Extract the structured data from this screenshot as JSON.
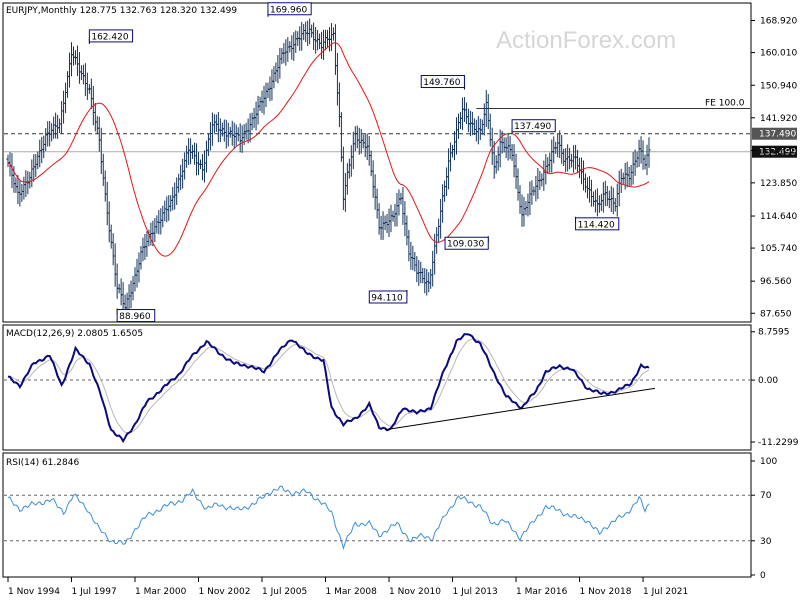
{
  "header": {
    "symbol_line": "EURJPY,Monthly  128.775 132.763 128.320 132.499",
    "watermark": "ActionForex.com"
  },
  "chart_data": [
    {
      "type": "ohlc",
      "panel": "price",
      "title": "EURJPY,Monthly",
      "ohlc_last": {
        "open": 128.775,
        "high": 132.763,
        "low": 128.32,
        "close": 132.499
      },
      "ylim": [
        85.5,
        173.5
      ],
      "y_ticks": [
        "168.920",
        "160.010",
        "150.940",
        "141.920",
        "132.830",
        "123.850",
        "114.640",
        "105.740",
        "96.560",
        "87.650"
      ],
      "ma_label": "",
      "levels": [
        {
          "value": 137.49,
          "style": "dashed",
          "label": "137.490"
        },
        {
          "value": 132.499,
          "style": "solid-gray",
          "label": "132.499"
        },
        {
          "value": 144.5,
          "style": "solid",
          "label": "FE 100.0",
          "x_start": "2014-07"
        }
      ],
      "annotations": [
        {
          "label": "162.420",
          "x": "1998-04",
          "y": 162.42
        },
        {
          "label": "169.960",
          "x": "2005-10",
          "y": 169.96
        },
        {
          "label": "88.960",
          "x": "1999-06",
          "y": 88.96
        },
        {
          "label": "94.110",
          "x": "2011-08",
          "y": 94.11
        },
        {
          "label": "149.760",
          "x": "2014-01",
          "y": 149.76
        },
        {
          "label": "137.490",
          "x": "2016-01",
          "y": 137.49
        },
        {
          "label": "109.030",
          "x": "2015-01",
          "y": 109.03
        },
        {
          "label": "114.420",
          "x": "2018-09",
          "y": 114.42
        }
      ],
      "close_anchors": [
        [
          "1994-11",
          129.0
        ],
        [
          "1995-04",
          121.0
        ],
        [
          "1995-10",
          125.0
        ],
        [
          "1996-06",
          137.0
        ],
        [
          "1997-01",
          140.0
        ],
        [
          "1997-07",
          160.0
        ],
        [
          "1997-11",
          155.0
        ],
        [
          "1998-04",
          150.0
        ],
        [
          "1998-09",
          135.0
        ],
        [
          "1998-12",
          120.0
        ],
        [
          "1999-06",
          95.0
        ],
        [
          "1999-10",
          89.0
        ],
        [
          "2000-03",
          98.0
        ],
        [
          "2000-06",
          104.0
        ],
        [
          "2001-01",
          112.0
        ],
        [
          "2001-09",
          118.0
        ],
        [
          "2002-06",
          133.0
        ],
        [
          "2003-01",
          128.0
        ],
        [
          "2003-06",
          140.0
        ],
        [
          "2004-01",
          138.0
        ],
        [
          "2004-08",
          136.0
        ],
        [
          "2005-03",
          142.0
        ],
        [
          "2005-10",
          150.0
        ],
        [
          "2006-06",
          160.0
        ],
        [
          "2007-01",
          164.0
        ],
        [
          "2007-07",
          166.0
        ],
        [
          "2008-01",
          162.0
        ],
        [
          "2008-07",
          165.0
        ],
        [
          "2008-10",
          142.0
        ],
        [
          "2008-12",
          120.0
        ],
        [
          "2009-06",
          137.0
        ],
        [
          "2009-12",
          134.0
        ],
        [
          "2010-06",
          112.0
        ],
        [
          "2011-01",
          114.0
        ],
        [
          "2011-05",
          120.0
        ],
        [
          "2011-09",
          105.0
        ],
        [
          "2012-01",
          99.0
        ],
        [
          "2012-07",
          96.0
        ],
        [
          "2012-12",
          112.0
        ],
        [
          "2013-05",
          130.0
        ],
        [
          "2013-12",
          144.0
        ],
        [
          "2014-03",
          141.0
        ],
        [
          "2014-09",
          138.0
        ],
        [
          "2014-12",
          145.0
        ],
        [
          "2015-04",
          128.0
        ],
        [
          "2015-07",
          135.0
        ],
        [
          "2016-01",
          132.0
        ],
        [
          "2016-06",
          115.0
        ],
        [
          "2016-12",
          122.0
        ],
        [
          "2017-06",
          128.0
        ],
        [
          "2017-12",
          135.0
        ],
        [
          "2018-03",
          131.0
        ],
        [
          "2018-09",
          130.0
        ],
        [
          "2019-01",
          125.0
        ],
        [
          "2019-08",
          117.0
        ],
        [
          "2019-12",
          121.0
        ],
        [
          "2020-05",
          118.0
        ],
        [
          "2020-08",
          125.0
        ],
        [
          "2020-12",
          126.0
        ],
        [
          "2021-05",
          133.0
        ],
        [
          "2021-08",
          129.0
        ],
        [
          "2021-10",
          132.5
        ]
      ]
    },
    {
      "type": "line",
      "panel": "macd",
      "title": "MACD(12,26,9) 2.0805 1.6505",
      "macd_value": 2.0805,
      "signal_value": 1.6505,
      "ylim": [
        -12.5,
        9.8
      ],
      "y_ticks": [
        "8.7595",
        "0.00",
        "-11.2299"
      ],
      "trendline": {
        "from": [
          "2010-09",
          -9.0
        ],
        "to": [
          "2022-01",
          -1.5
        ]
      },
      "macd_anchors": [
        [
          "1994-11",
          0.5
        ],
        [
          "1995-05",
          -1.0
        ],
        [
          "1995-12",
          3.0
        ],
        [
          "1996-08",
          4.5
        ],
        [
          "1997-02",
          -1.0
        ],
        [
          "1997-09",
          5.5
        ],
        [
          "1998-04",
          3.0
        ],
        [
          "1998-10",
          -3.0
        ],
        [
          "1999-03",
          -9.0
        ],
        [
          "1999-09",
          -11.0
        ],
        [
          "2000-03",
          -8.0
        ],
        [
          "2000-09",
          -4.0
        ],
        [
          "2001-05",
          -1.5
        ],
        [
          "2002-01",
          1.0
        ],
        [
          "2002-07",
          4.0
        ],
        [
          "2003-03",
          7.0
        ],
        [
          "2003-09",
          5.0
        ],
        [
          "2004-05",
          3.0
        ],
        [
          "2005-01",
          2.5
        ],
        [
          "2005-08",
          1.5
        ],
        [
          "2006-03",
          5.0
        ],
        [
          "2006-10",
          7.5
        ],
        [
          "2007-05",
          5.0
        ],
        [
          "2008-02",
          3.5
        ],
        [
          "2008-06",
          -5.0
        ],
        [
          "2008-12",
          -8.0
        ],
        [
          "2009-06",
          -7.0
        ],
        [
          "2010-01",
          -4.5
        ],
        [
          "2010-06",
          -8.5
        ],
        [
          "2010-12",
          -9.0
        ],
        [
          "2011-06",
          -5.0
        ],
        [
          "2012-01",
          -6.0
        ],
        [
          "2012-08",
          -5.0
        ],
        [
          "2013-03",
          2.0
        ],
        [
          "2013-09",
          7.0
        ],
        [
          "2014-03",
          8.5
        ],
        [
          "2014-09",
          6.5
        ],
        [
          "2015-03",
          2.0
        ],
        [
          "2015-10",
          -3.0
        ],
        [
          "2016-06",
          -5.0
        ],
        [
          "2017-01",
          -2.0
        ],
        [
          "2017-06",
          1.5
        ],
        [
          "2018-01",
          2.5
        ],
        [
          "2018-07",
          2.0
        ],
        [
          "2019-03",
          -1.5
        ],
        [
          "2019-10",
          -2.5
        ],
        [
          "2020-06",
          -2.0
        ],
        [
          "2021-01",
          -0.5
        ],
        [
          "2021-06",
          2.5
        ],
        [
          "2021-10",
          2.08
        ]
      ]
    },
    {
      "type": "line",
      "panel": "rsi",
      "title": "RSI(14) 61.2846",
      "rsi_value": 61.2846,
      "ylim": [
        0,
        100
      ],
      "y_ticks": [
        "100",
        "70",
        "30",
        "0"
      ],
      "levels": [
        70,
        30
      ],
      "rsi_anchors": [
        [
          "1994-11",
          67.0
        ],
        [
          "1995-05",
          58.0
        ],
        [
          "1995-12",
          62.0
        ],
        [
          "1996-09",
          66.0
        ],
        [
          "1997-03",
          55.0
        ],
        [
          "1997-08",
          70.0
        ],
        [
          "1998-03",
          58.0
        ],
        [
          "1998-09",
          40.0
        ],
        [
          "1999-03",
          30.0
        ],
        [
          "1999-10",
          27.0
        ],
        [
          "2000-03",
          40.0
        ],
        [
          "2000-09",
          52.0
        ],
        [
          "2001-06",
          60.0
        ],
        [
          "2002-03",
          66.0
        ],
        [
          "2002-08",
          73.0
        ],
        [
          "2003-03",
          58.0
        ],
        [
          "2003-09",
          62.0
        ],
        [
          "2004-06",
          57.0
        ],
        [
          "2005-03",
          62.0
        ],
        [
          "2005-10",
          72.0
        ],
        [
          "2006-04",
          76.0
        ],
        [
          "2006-10",
          72.0
        ],
        [
          "2007-06",
          73.0
        ],
        [
          "2008-02",
          62.0
        ],
        [
          "2008-06",
          55.0
        ],
        [
          "2008-12",
          25.0
        ],
        [
          "2009-06",
          45.0
        ],
        [
          "2010-01",
          45.0
        ],
        [
          "2010-06",
          35.0
        ],
        [
          "2011-03",
          45.0
        ],
        [
          "2011-10",
          30.0
        ],
        [
          "2012-04",
          35.0
        ],
        [
          "2012-09",
          32.0
        ],
        [
          "2013-04",
          55.0
        ],
        [
          "2013-10",
          68.0
        ],
        [
          "2014-03",
          65.0
        ],
        [
          "2014-09",
          60.0
        ],
        [
          "2015-03",
          45.0
        ],
        [
          "2015-09",
          48.0
        ],
        [
          "2016-05",
          33.0
        ],
        [
          "2016-11",
          45.0
        ],
        [
          "2017-06",
          60.0
        ],
        [
          "2017-12",
          57.0
        ],
        [
          "2018-06",
          52.0
        ],
        [
          "2019-03",
          48.0
        ],
        [
          "2019-09",
          36.0
        ],
        [
          "2020-04",
          48.0
        ],
        [
          "2020-10",
          52.0
        ],
        [
          "2021-05",
          68.0
        ],
        [
          "2021-08",
          56.0
        ],
        [
          "2021-10",
          61.3
        ]
      ]
    }
  ],
  "x_axis": {
    "tick_labels": [
      "1 Nov 1994",
      "1 Jul 1997",
      "1 Mar 2000",
      "1 Nov 2002",
      "1 Jul 2005",
      "1 Mar 2008",
      "1 Nov 2010",
      "1 Jul 2013",
      "1 Mar 2016",
      "1 Nov 2018",
      "1 Jul 2021"
    ],
    "tick_dates": [
      "1994-11",
      "1997-07",
      "2000-03",
      "2002-11",
      "2005-07",
      "2008-03",
      "2010-11",
      "2013-07",
      "2016-03",
      "2018-11",
      "2021-07"
    ],
    "start": "1994-11",
    "end": "2021-10"
  },
  "colors": {
    "price_bars": "#13335c",
    "moving_average": "#e01818",
    "macd_line": "#0a0a80",
    "signal_line": "#b8b8b8",
    "rsi_line": "#3b8fd9",
    "grid_dashed": "#888888",
    "background": "#ffffff",
    "label_box_border": "#0a0a80"
  }
}
